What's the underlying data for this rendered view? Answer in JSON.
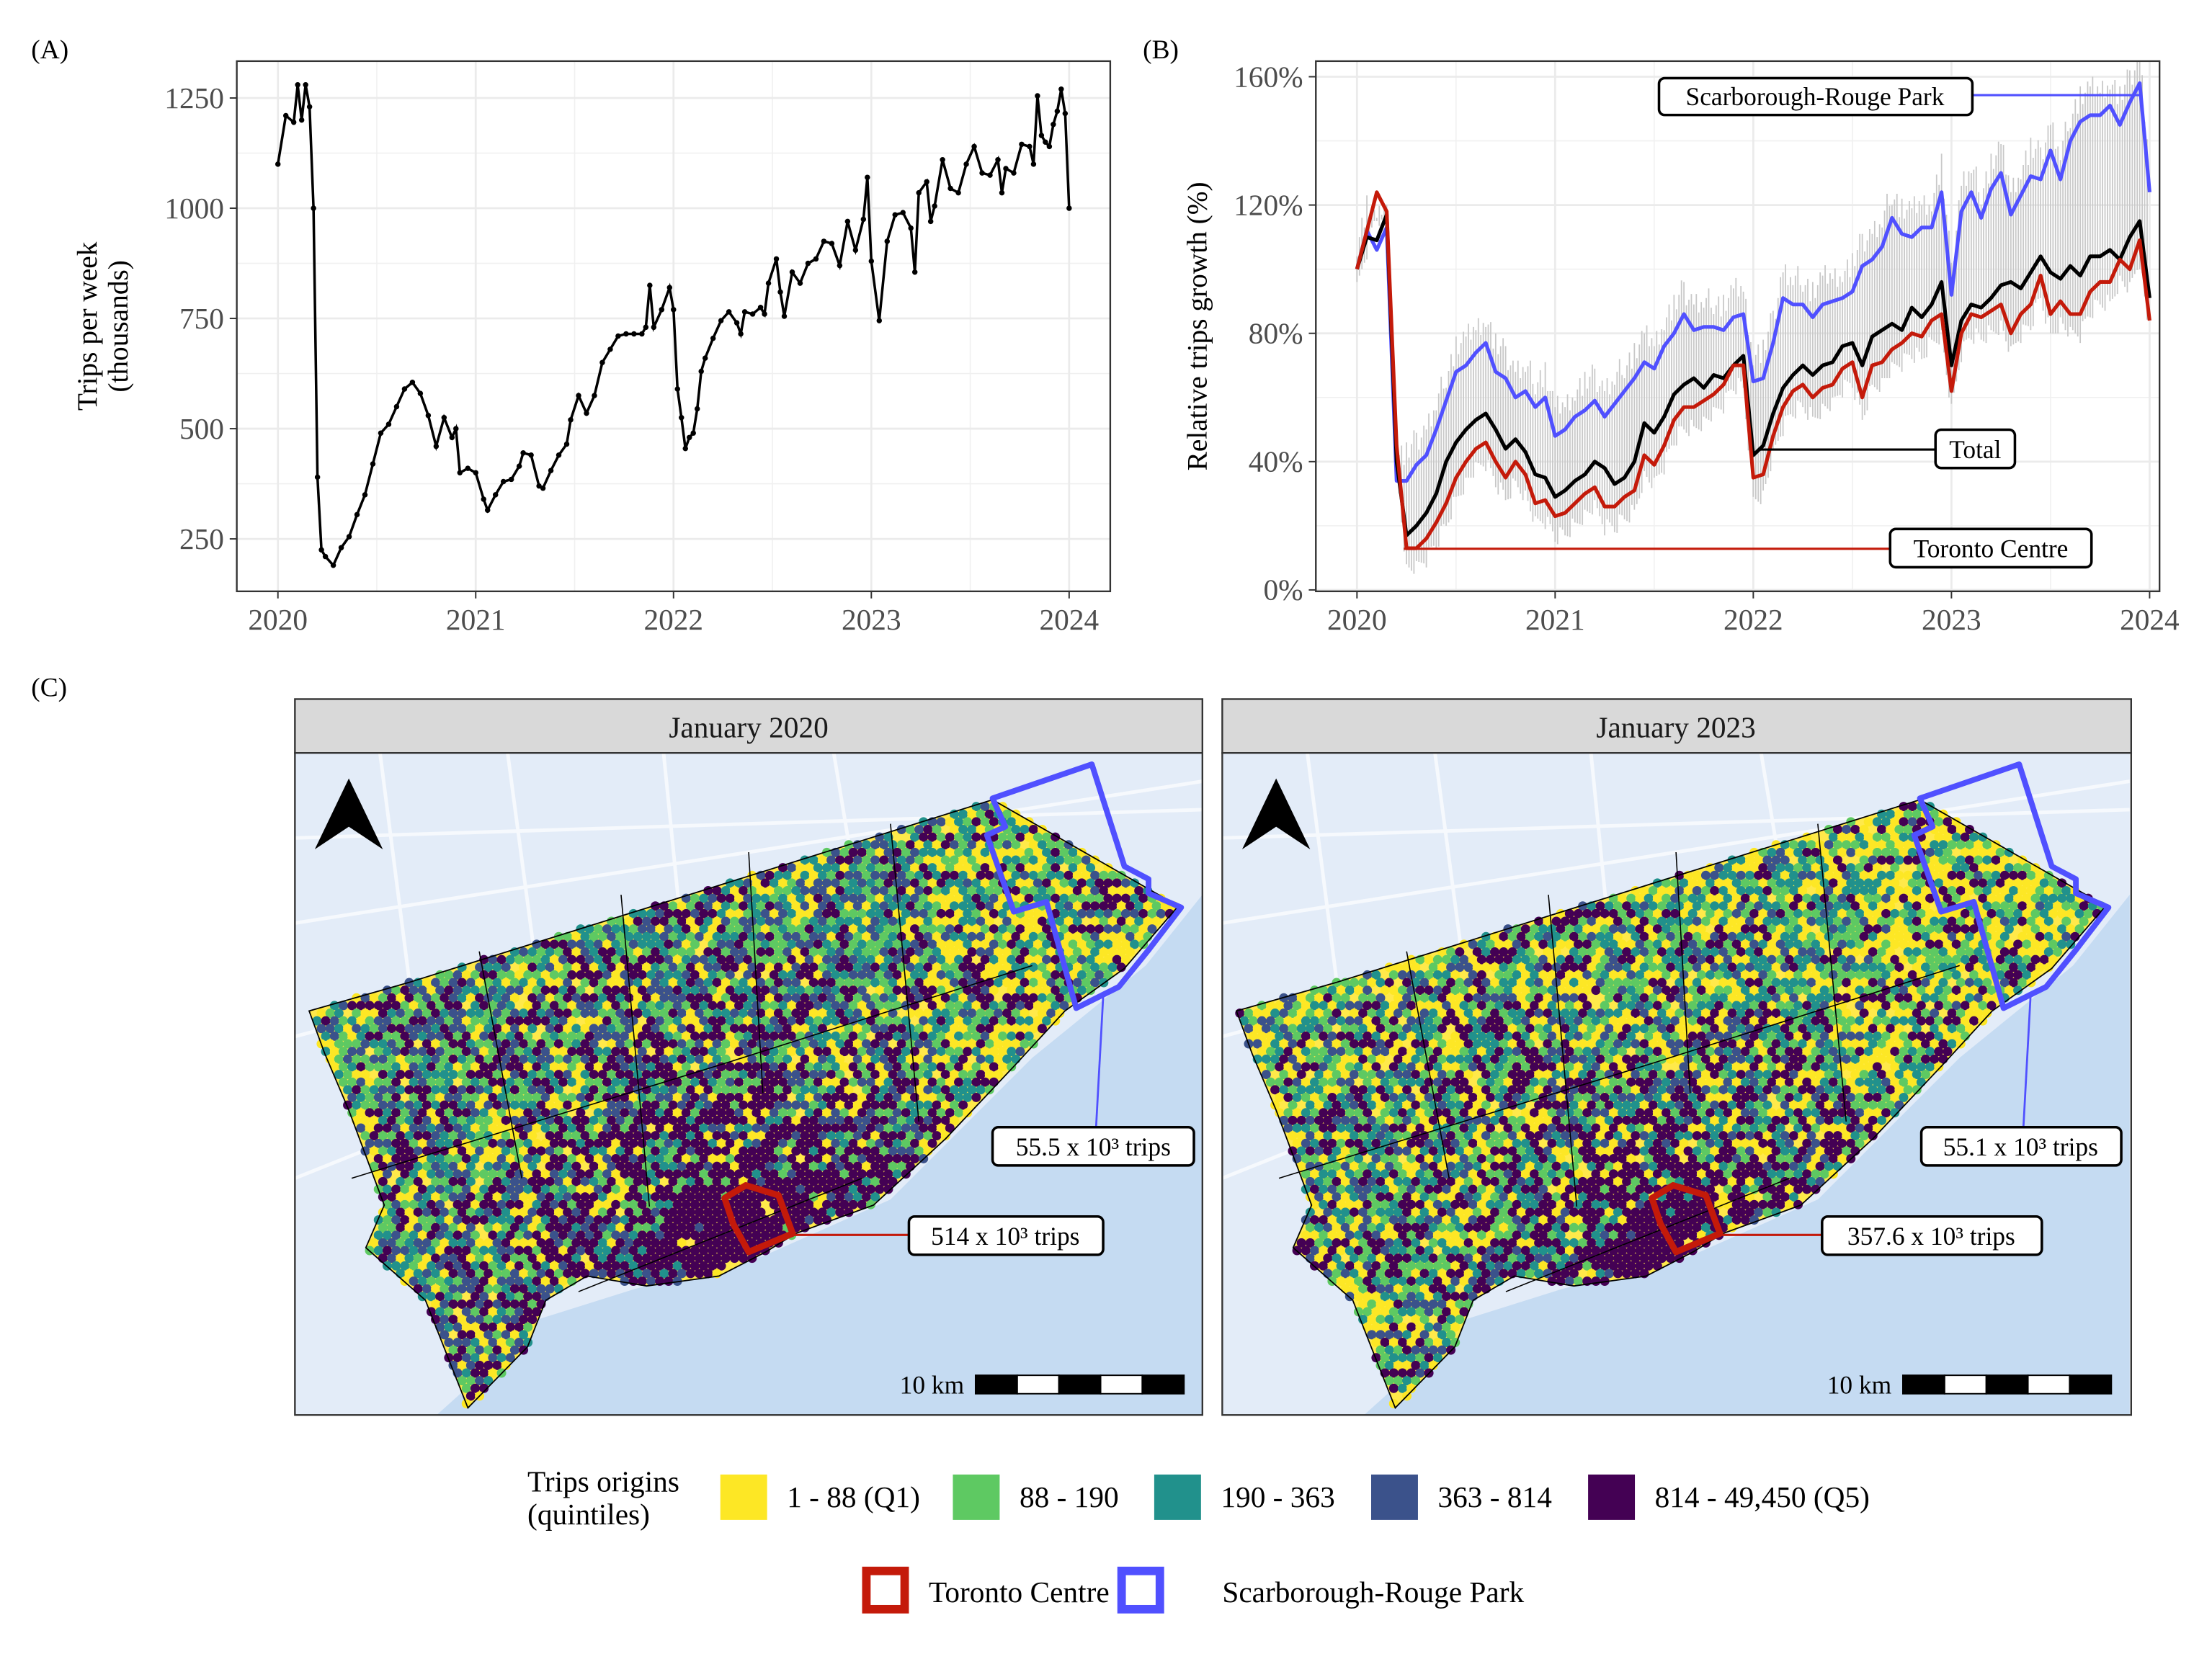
{
  "panel_labels": {
    "a": "(A)",
    "b": "(B)",
    "c": "(C)"
  },
  "chart_data": [
    {
      "type": "line",
      "panel": "(A)",
      "ylabel_line1": "Trips per week",
      "ylabel_line2": "(thousands)",
      "xlabel": "",
      "xlim": [
        2020,
        2024
      ],
      "ylim": [
        150,
        1330
      ],
      "x_ticks": [
        "2020",
        "2021",
        "2022",
        "2023",
        "2024"
      ],
      "y_ticks": [
        "250",
        "500",
        "750",
        "1000",
        "1250"
      ],
      "grid": true,
      "markers": true,
      "color": "#000000",
      "points": [
        [
          2020.0,
          1100
        ],
        [
          2020.04,
          1210
        ],
        [
          2020.08,
          1195
        ],
        [
          2020.1,
          1280
        ],
        [
          2020.12,
          1200
        ],
        [
          2020.14,
          1280
        ],
        [
          2020.16,
          1230
        ],
        [
          2020.18,
          1000
        ],
        [
          2020.2,
          390
        ],
        [
          2020.22,
          225
        ],
        [
          2020.24,
          210
        ],
        [
          2020.28,
          190
        ],
        [
          2020.32,
          230
        ],
        [
          2020.36,
          255
        ],
        [
          2020.4,
          305
        ],
        [
          2020.44,
          350
        ],
        [
          2020.48,
          420
        ],
        [
          2020.52,
          490
        ],
        [
          2020.56,
          510
        ],
        [
          2020.6,
          550
        ],
        [
          2020.64,
          590
        ],
        [
          2020.68,
          605
        ],
        [
          2020.72,
          580
        ],
        [
          2020.76,
          530
        ],
        [
          2020.8,
          460
        ],
        [
          2020.84,
          525
        ],
        [
          2020.88,
          480
        ],
        [
          2020.9,
          500
        ],
        [
          2020.92,
          400
        ],
        [
          2020.96,
          410
        ],
        [
          2021.0,
          400
        ],
        [
          2021.04,
          340
        ],
        [
          2021.06,
          315
        ],
        [
          2021.1,
          350
        ],
        [
          2021.14,
          380
        ],
        [
          2021.18,
          385
        ],
        [
          2021.22,
          415
        ],
        [
          2021.24,
          445
        ],
        [
          2021.28,
          440
        ],
        [
          2021.32,
          370
        ],
        [
          2021.34,
          365
        ],
        [
          2021.38,
          405
        ],
        [
          2021.42,
          440
        ],
        [
          2021.46,
          465
        ],
        [
          2021.48,
          520
        ],
        [
          2021.52,
          575
        ],
        [
          2021.56,
          535
        ],
        [
          2021.6,
          575
        ],
        [
          2021.64,
          650
        ],
        [
          2021.68,
          680
        ],
        [
          2021.72,
          710
        ],
        [
          2021.76,
          715
        ],
        [
          2021.8,
          715
        ],
        [
          2021.84,
          715
        ],
        [
          2021.86,
          730
        ],
        [
          2021.88,
          825
        ],
        [
          2021.9,
          730
        ],
        [
          2021.94,
          770
        ],
        [
          2021.98,
          820
        ],
        [
          2022.0,
          770
        ],
        [
          2022.02,
          590
        ],
        [
          2022.04,
          525
        ],
        [
          2022.06,
          455
        ],
        [
          2022.08,
          480
        ],
        [
          2022.1,
          490
        ],
        [
          2022.12,
          545
        ],
        [
          2022.14,
          630
        ],
        [
          2022.16,
          660
        ],
        [
          2022.2,
          705
        ],
        [
          2022.24,
          745
        ],
        [
          2022.28,
          765
        ],
        [
          2022.32,
          740
        ],
        [
          2022.34,
          715
        ],
        [
          2022.36,
          765
        ],
        [
          2022.4,
          760
        ],
        [
          2022.44,
          775
        ],
        [
          2022.46,
          760
        ],
        [
          2022.48,
          830
        ],
        [
          2022.52,
          885
        ],
        [
          2022.54,
          810
        ],
        [
          2022.56,
          755
        ],
        [
          2022.6,
          855
        ],
        [
          2022.64,
          830
        ],
        [
          2022.68,
          875
        ],
        [
          2022.72,
          885
        ],
        [
          2022.76,
          925
        ],
        [
          2022.8,
          920
        ],
        [
          2022.84,
          870
        ],
        [
          2022.88,
          970
        ],
        [
          2022.92,
          905
        ],
        [
          2022.96,
          975
        ],
        [
          2022.98,
          1070
        ],
        [
          2023.0,
          880
        ],
        [
          2023.04,
          745
        ],
        [
          2023.08,
          925
        ],
        [
          2023.12,
          985
        ],
        [
          2023.16,
          990
        ],
        [
          2023.2,
          955
        ],
        [
          2023.22,
          855
        ],
        [
          2023.24,
          1035
        ],
        [
          2023.28,
          1060
        ],
        [
          2023.3,
          970
        ],
        [
          2023.32,
          1005
        ],
        [
          2023.36,
          1110
        ],
        [
          2023.4,
          1045
        ],
        [
          2023.44,
          1035
        ],
        [
          2023.48,
          1100
        ],
        [
          2023.52,
          1140
        ],
        [
          2023.56,
          1080
        ],
        [
          2023.6,
          1075
        ],
        [
          2023.64,
          1110
        ],
        [
          2023.66,
          1035
        ],
        [
          2023.68,
          1090
        ],
        [
          2023.72,
          1080
        ],
        [
          2023.76,
          1145
        ],
        [
          2023.8,
          1140
        ],
        [
          2023.82,
          1100
        ],
        [
          2023.84,
          1255
        ],
        [
          2023.86,
          1165
        ],
        [
          2023.88,
          1150
        ],
        [
          2023.9,
          1140
        ],
        [
          2023.92,
          1190
        ],
        [
          2023.94,
          1220
        ],
        [
          2023.96,
          1270
        ],
        [
          2023.98,
          1215
        ],
        [
          2024.0,
          1000
        ]
      ]
    },
    {
      "type": "line",
      "panel": "(B)",
      "ylabel": "Relative trips growth (%)",
      "xlabel": "",
      "xlim": [
        2020,
        2024
      ],
      "ylim": [
        0,
        165
      ],
      "x_ticks": [
        "2020",
        "2021",
        "2022",
        "2023",
        "2024"
      ],
      "y_ticks": [
        "0%",
        "40%",
        "80%",
        "120%",
        "160%"
      ],
      "grid": true,
      "shaded_range": "grey band spanning the individual riding series",
      "x": [
        2020.0,
        2020.05,
        2020.1,
        2020.15,
        2020.2,
        2020.25,
        2020.3,
        2020.35,
        2020.4,
        2020.45,
        2020.5,
        2020.55,
        2020.6,
        2020.65,
        2020.7,
        2020.75,
        2020.8,
        2020.85,
        2020.9,
        2020.95,
        2021.0,
        2021.05,
        2021.1,
        2021.15,
        2021.2,
        2021.25,
        2021.3,
        2021.35,
        2021.4,
        2021.45,
        2021.5,
        2021.55,
        2021.6,
        2021.65,
        2021.7,
        2021.75,
        2021.8,
        2021.85,
        2021.9,
        2021.95,
        2022.0,
        2022.05,
        2022.1,
        2022.15,
        2022.2,
        2022.25,
        2022.3,
        2022.35,
        2022.4,
        2022.45,
        2022.5,
        2022.55,
        2022.6,
        2022.65,
        2022.7,
        2022.75,
        2022.8,
        2022.85,
        2022.9,
        2022.95,
        2023.0,
        2023.05,
        2023.1,
        2023.15,
        2023.2,
        2023.25,
        2023.3,
        2023.35,
        2023.4,
        2023.45,
        2023.5,
        2023.55,
        2023.6,
        2023.65,
        2023.7,
        2023.75,
        2023.8,
        2023.85,
        2023.9,
        2023.95,
        2024.0
      ],
      "series": [
        {
          "name": "Scarborough-Rouge Park",
          "color": "#5050ff",
          "values": [
            100,
            112,
            106,
            113,
            34,
            34,
            39,
            42,
            50,
            59,
            68,
            70,
            74,
            77,
            68,
            66,
            60,
            62,
            57,
            60,
            48,
            50,
            54,
            56,
            59,
            54,
            58,
            62,
            66,
            71,
            69,
            76,
            80,
            86,
            81,
            82,
            82,
            81,
            85,
            86,
            65,
            66,
            77,
            91,
            89,
            89,
            85,
            89,
            90,
            91,
            93,
            101,
            103,
            107,
            116,
            111,
            110,
            113,
            113,
            124,
            92,
            118,
            124,
            116,
            125,
            130,
            117,
            123,
            129,
            128,
            137,
            128,
            140,
            146,
            148,
            148,
            151,
            145,
            152,
            158,
            124
          ]
        },
        {
          "name": "Total",
          "color": "#000000",
          "values": [
            100,
            110,
            109,
            117,
            40,
            17,
            20,
            24,
            30,
            40,
            46,
            50,
            53,
            55,
            50,
            44,
            47,
            43,
            36,
            35,
            29,
            31,
            34,
            36,
            40,
            38,
            33,
            35,
            40,
            52,
            49,
            54,
            61,
            64,
            66,
            63,
            67,
            66,
            70,
            73,
            42,
            45,
            55,
            63,
            67,
            70,
            67,
            70,
            71,
            76,
            77,
            70,
            79,
            81,
            83,
            81,
            88,
            85,
            89,
            96,
            70,
            84,
            89,
            88,
            91,
            95,
            96,
            94,
            99,
            104,
            99,
            97,
            101,
            98,
            104,
            104,
            106,
            103,
            110,
            115,
            91
          ]
        },
        {
          "name": "Toronto Centre",
          "color": "#c41a0a",
          "values": [
            100,
            112,
            124,
            118,
            45,
            13,
            13,
            16,
            21,
            27,
            35,
            40,
            44,
            46,
            40,
            35,
            40,
            36,
            27,
            28,
            23,
            24,
            27,
            30,
            32,
            26,
            26,
            29,
            31,
            42,
            39,
            45,
            53,
            57,
            57,
            59,
            61,
            64,
            70,
            70,
            35,
            36,
            48,
            57,
            62,
            64,
            60,
            63,
            64,
            69,
            71,
            60,
            70,
            71,
            75,
            77,
            80,
            79,
            84,
            86,
            62,
            80,
            86,
            85,
            87,
            89,
            80,
            86,
            89,
            98,
            86,
            90,
            86,
            86,
            93,
            96,
            96,
            103,
            100,
            109,
            84
          ]
        }
      ]
    }
  ],
  "maps": {
    "panels": [
      {
        "title": "January 2020",
        "srp_label": "55.5 x 10³ trips",
        "tc_label": "514 x 10³ trips"
      },
      {
        "title": "January 2023",
        "srp_label": "55.1 x 10³ trips",
        "tc_label": "357.6 x 10³ trips"
      }
    ],
    "scale_label": "10 km",
    "north_arrow": "north-arrow-icon",
    "colors": {
      "land": "#e3ecf8",
      "water": "#c5dbf2"
    }
  },
  "legend": {
    "title_line1": "Trips origins",
    "title_line2": "(quintiles)",
    "quintiles": [
      {
        "label": "1 - 88 (Q1)",
        "color": "#fde725"
      },
      {
        "label": "88 - 190",
        "color": "#5ec962"
      },
      {
        "label": "190 - 363",
        "color": "#21918c"
      },
      {
        "label": "363 - 814",
        "color": "#3b528b"
      },
      {
        "label": "814 - 49,450 (Q5)",
        "color": "#440154"
      }
    ],
    "outlines": [
      {
        "label": "Toronto Centre",
        "color": "#c41a0a"
      },
      {
        "label": "Scarborough-Rouge Park",
        "color": "#5050ff"
      }
    ]
  }
}
